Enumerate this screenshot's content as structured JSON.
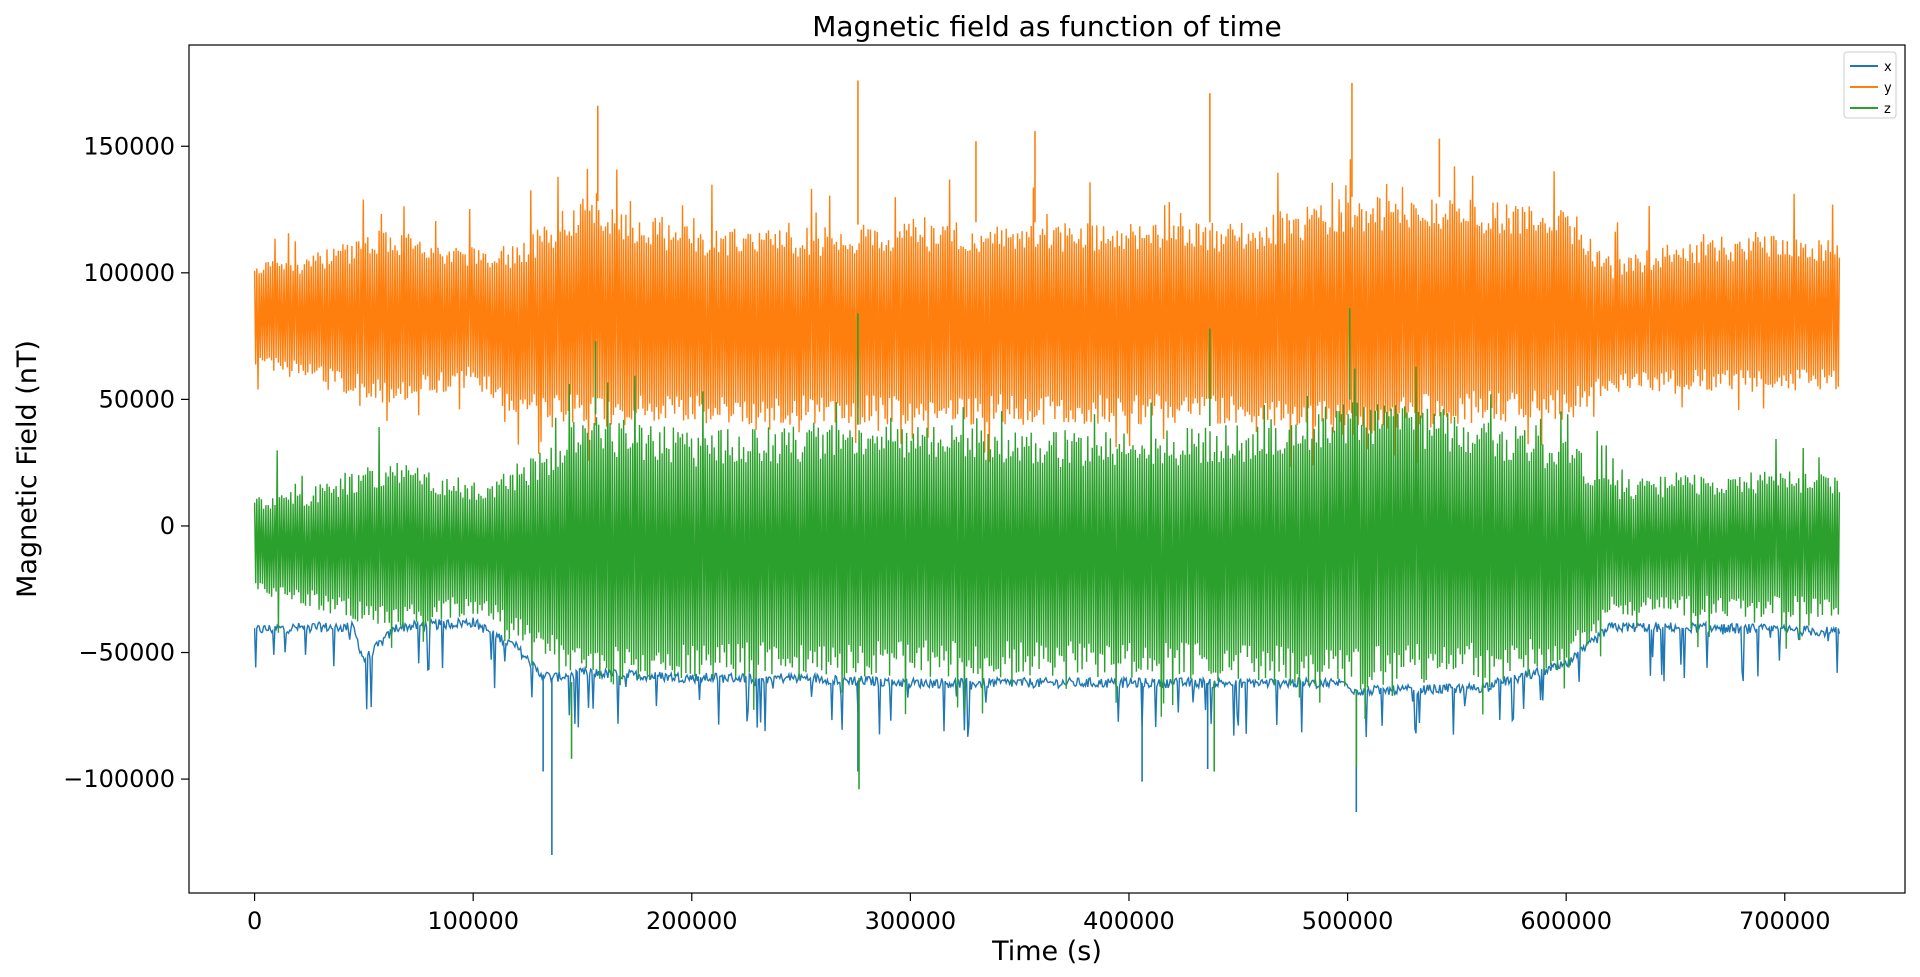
{
  "chart_data": {
    "type": "line",
    "title": "Magnetic field as function of time",
    "xlabel": "Time (s)",
    "ylabel": "Magnetic Field (nT)",
    "xlim": [
      -30000,
      755000
    ],
    "ylim": [
      -145000,
      190000
    ],
    "xticks": [
      0,
      100000,
      200000,
      300000,
      400000,
      500000,
      600000,
      700000
    ],
    "xtick_labels": [
      "0",
      "100000",
      "200000",
      "300000",
      "400000",
      "500000",
      "600000",
      "700000"
    ],
    "yticks": [
      -100000,
      -50000,
      0,
      50000,
      100000,
      150000
    ],
    "ytick_labels": [
      "−100000",
      "−50000",
      "0",
      "50000",
      "100000",
      "150000"
    ],
    "grid": false,
    "legend_position": "top-right",
    "x_range": [
      0,
      725000
    ],
    "series": [
      {
        "name": "x",
        "color": "#1f77b4",
        "x": [
          0,
          25000,
          45000,
          50000,
          65000,
          100000,
          120000,
          130000,
          136000,
          150000,
          200000,
          250000,
          300000,
          350000,
          400000,
          450000,
          500000,
          503000,
          520000,
          560000,
          600000,
          620000,
          650000,
          700000,
          725000
        ],
        "baseline": [
          -41000,
          -40000,
          -40000,
          -53000,
          -40000,
          -38000,
          -48000,
          -58000,
          -60000,
          -58000,
          -60000,
          -60000,
          -62000,
          -62000,
          -62000,
          -62000,
          -62000,
          -65000,
          -65000,
          -64000,
          -55000,
          -40000,
          -40000,
          -41000,
          -42000
        ],
        "spikes": [
          [
            136000,
            -130000
          ],
          [
            132000,
            -97000
          ],
          [
            504000,
            -113000
          ],
          [
            406000,
            -101000
          ],
          [
            276000,
            -97000
          ],
          [
            436000,
            -96000
          ]
        ]
      },
      {
        "name": "y",
        "color": "#ff7f0e",
        "x": [
          0,
          25000,
          60000,
          100000,
          120000,
          150000,
          200000,
          250000,
          300000,
          350000,
          400000,
          450000,
          500000,
          550000,
          600000,
          620000,
          650000,
          700000,
          725000
        ],
        "upper": [
          104000,
          107000,
          118000,
          110000,
          112000,
          130000,
          118000,
          118000,
          120000,
          120000,
          120000,
          120000,
          130000,
          130000,
          125000,
          105000,
          112000,
          115000,
          113000
        ],
        "lower": [
          62000,
          57000,
          47000,
          55000,
          42000,
          38000,
          40000,
          40000,
          40000,
          40000,
          40000,
          40000,
          35000,
          40000,
          42000,
          52000,
          53000,
          53000,
          53000
        ],
        "spikes": [
          [
            276000,
            176000
          ],
          [
            502000,
            175000
          ],
          [
            437000,
            171000
          ],
          [
            157000,
            166000
          ],
          [
            330000,
            152000
          ],
          [
            542000,
            153000
          ],
          [
            357000,
            156000
          ]
        ]
      },
      {
        "name": "z",
        "color": "#2ca02c",
        "x": [
          0,
          25000,
          60000,
          100000,
          120000,
          150000,
          200000,
          250000,
          300000,
          350000,
          400000,
          450000,
          500000,
          550000,
          600000,
          620000,
          650000,
          700000,
          725000
        ],
        "upper": [
          12000,
          15000,
          26000,
          18000,
          22000,
          45000,
          38000,
          40000,
          40000,
          38000,
          38000,
          40000,
          50000,
          45000,
          35000,
          18000,
          20000,
          22000,
          21000
        ],
        "lower": [
          -28000,
          -32000,
          -42000,
          -35000,
          -45000,
          -65000,
          -60000,
          -60000,
          -60000,
          -60000,
          -60000,
          -62000,
          -65000,
          -62000,
          -58000,
          -36000,
          -36000,
          -36000,
          -37000
        ],
        "spikes": [
          [
            276000,
            84000
          ],
          [
            501000,
            86000
          ],
          [
            437000,
            78000
          ],
          [
            156000,
            73000
          ],
          [
            276500,
            -104000
          ],
          [
            145000,
            -92000
          ],
          [
            504000,
            -95000
          ],
          [
            439000,
            -97000
          ]
        ]
      }
    ]
  }
}
